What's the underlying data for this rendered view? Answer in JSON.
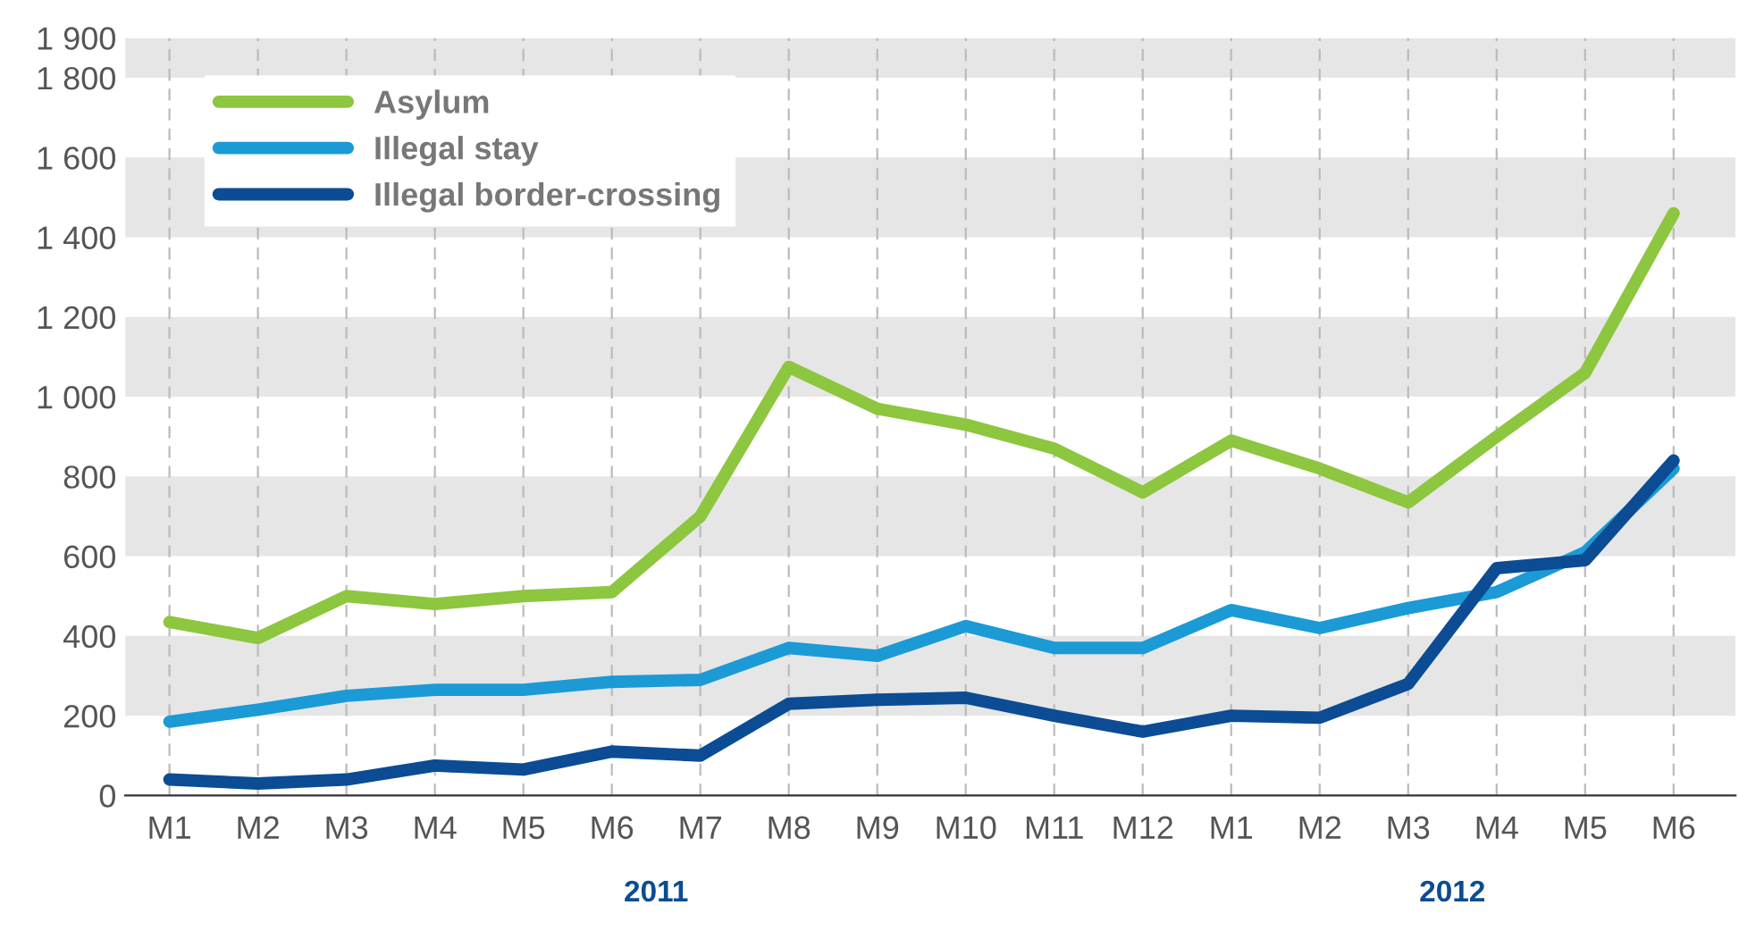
{
  "chart_data": {
    "type": "line",
    "categories": [
      "M1",
      "M2",
      "M3",
      "M4",
      "M5",
      "M6",
      "M7",
      "M8",
      "M9",
      "M10",
      "M11",
      "M12",
      "M1",
      "M2",
      "M3",
      "M4",
      "M5",
      "M6"
    ],
    "series": [
      {
        "name": "Asylum",
        "color": "#8dc63f",
        "values": [
          435,
          395,
          500,
          480,
          500,
          510,
          700,
          1075,
          970,
          930,
          870,
          760,
          890,
          820,
          735,
          900,
          1060,
          1460
        ]
      },
      {
        "name": "Illegal stay",
        "color": "#1b9ad6",
        "values": [
          185,
          215,
          250,
          265,
          265,
          285,
          290,
          370,
          350,
          425,
          370,
          370,
          465,
          420,
          470,
          510,
          610,
          820
        ]
      },
      {
        "name": "Illegal border-crossing",
        "color": "#0b4c94",
        "values": [
          40,
          30,
          40,
          75,
          65,
          110,
          100,
          230,
          240,
          245,
          200,
          160,
          200,
          195,
          280,
          570,
          590,
          840
        ]
      }
    ],
    "ylim": [
      0,
      1900
    ],
    "yticks": [
      0,
      200,
      400,
      600,
      800,
      {
        "value": 1000,
        "label": "1 000"
      },
      {
        "value": 1200,
        "label": "1 200"
      },
      {
        "value": 1400,
        "label": "1 400"
      },
      {
        "value": 1600,
        "label": "1 600"
      },
      {
        "value": 1800,
        "label": "1 800"
      },
      {
        "value": 1900,
        "label": "1 900"
      }
    ],
    "bands": [
      {
        "axis": "y",
        "from": 200,
        "to": 400,
        "color": "#e6e6e6"
      },
      {
        "axis": "y",
        "from": 600,
        "to": 800,
        "color": "#e6e6e6"
      },
      {
        "axis": "y",
        "from": 1000,
        "to": 1200,
        "color": "#e6e6e6"
      },
      {
        "axis": "y",
        "from": 1400,
        "to": 1600,
        "color": "#e6e6e6"
      },
      {
        "axis": "y",
        "from": 1800,
        "to": 1900,
        "color": "#e6e6e6"
      }
    ],
    "annotations": [
      "2011",
      "2012"
    ],
    "grid": "x",
    "legend": "top left",
    "line_style": "solid"
  }
}
